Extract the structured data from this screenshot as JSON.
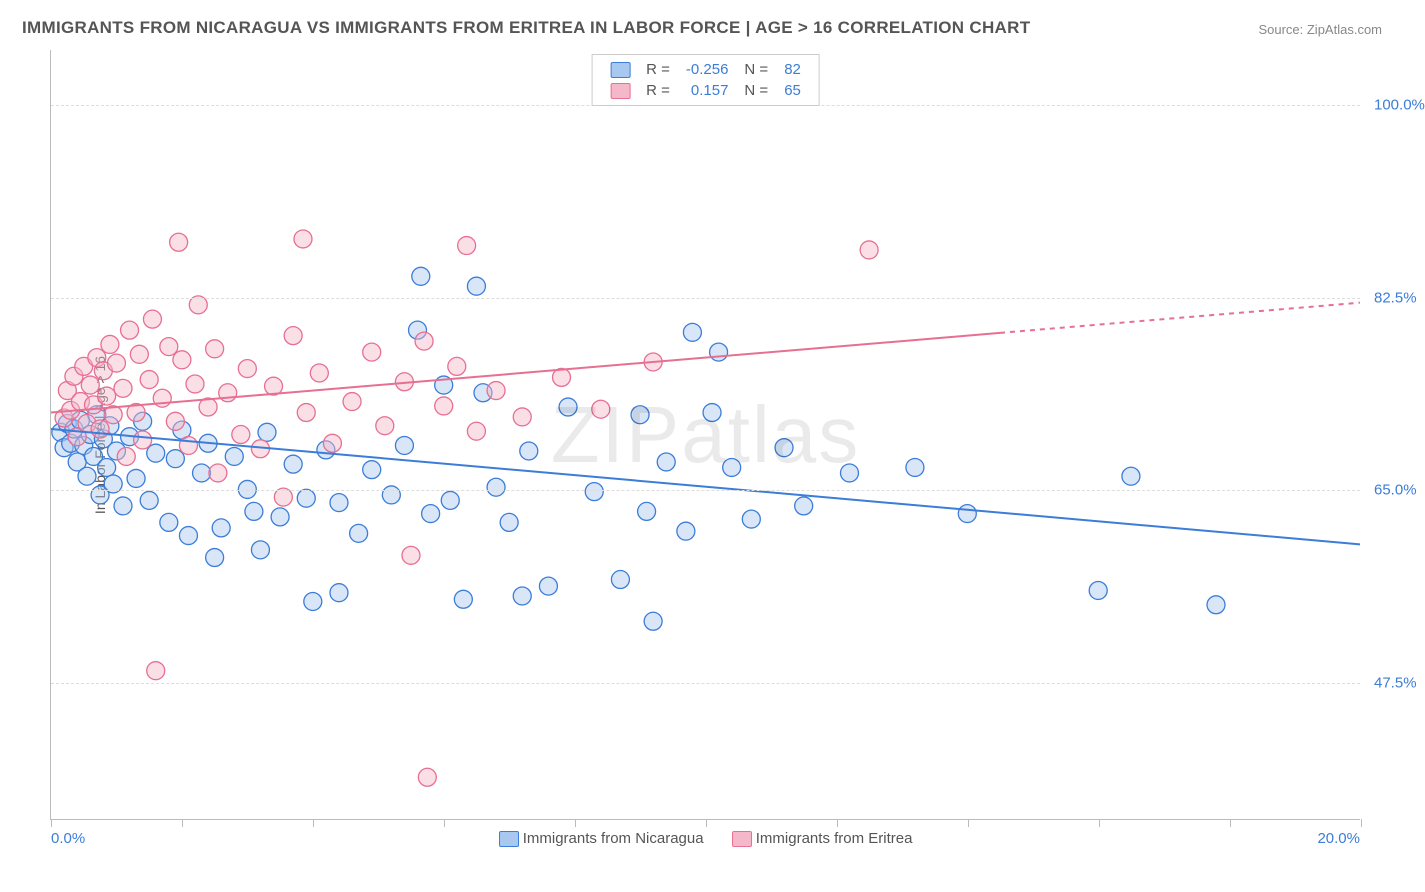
{
  "title": "IMMIGRANTS FROM NICARAGUA VS IMMIGRANTS FROM ERITREA IN LABOR FORCE | AGE > 16 CORRELATION CHART",
  "source": "Source: ZipAtlas.com",
  "watermark": "ZIPatlas",
  "yaxis_title": "In Labor Force | Age > 16",
  "chart": {
    "type": "scatter",
    "xlim": [
      0.0,
      20.0
    ],
    "ylim": [
      35.0,
      105.0
    ],
    "x_ticks": [
      0.0,
      2.0,
      4.0,
      6.0,
      8.0,
      10.0,
      12.0,
      14.0,
      16.0,
      18.0,
      20.0
    ],
    "y_gridlines": [
      47.5,
      65.0,
      82.5,
      100.0
    ],
    "y_tick_labels": [
      "47.5%",
      "65.0%",
      "82.5%",
      "100.0%"
    ],
    "x_min_label": "0.0%",
    "x_max_label": "20.0%",
    "grid_color": "#dddddd",
    "axis_color": "#bbbbbb",
    "background_color": "#ffffff",
    "marker_radius": 9,
    "marker_opacity": 0.45,
    "line_width": 2,
    "series": [
      {
        "name": "Immigrants from Nicaragua",
        "color_stroke": "#3b7dd8",
        "color_fill": "#a9c8ef",
        "R": "-0.256",
        "N": "82",
        "trend": {
          "x1": 0.0,
          "y1": 70.5,
          "x2": 20.0,
          "y2": 60.0,
          "dash_from_x": null
        },
        "points": [
          [
            0.15,
            70.2
          ],
          [
            0.2,
            68.8
          ],
          [
            0.25,
            71.0
          ],
          [
            0.3,
            69.2
          ],
          [
            0.35,
            70.5
          ],
          [
            0.4,
            67.5
          ],
          [
            0.45,
            71.3
          ],
          [
            0.5,
            69.0
          ],
          [
            0.55,
            66.2
          ],
          [
            0.6,
            70.0
          ],
          [
            0.65,
            68.0
          ],
          [
            0.7,
            71.8
          ],
          [
            0.75,
            64.5
          ],
          [
            0.8,
            69.6
          ],
          [
            0.85,
            67.0
          ],
          [
            0.9,
            70.8
          ],
          [
            0.95,
            65.5
          ],
          [
            1.0,
            68.5
          ],
          [
            1.1,
            63.5
          ],
          [
            1.2,
            69.8
          ],
          [
            1.3,
            66.0
          ],
          [
            1.4,
            71.2
          ],
          [
            1.5,
            64.0
          ],
          [
            1.6,
            68.3
          ],
          [
            1.8,
            62.0
          ],
          [
            1.9,
            67.8
          ],
          [
            2.0,
            70.4
          ],
          [
            2.1,
            60.8
          ],
          [
            2.3,
            66.5
          ],
          [
            2.4,
            69.2
          ],
          [
            2.6,
            61.5
          ],
          [
            2.8,
            68.0
          ],
          [
            3.0,
            65.0
          ],
          [
            3.1,
            63.0
          ],
          [
            3.3,
            70.2
          ],
          [
            3.5,
            62.5
          ],
          [
            3.7,
            67.3
          ],
          [
            3.9,
            64.2
          ],
          [
            4.0,
            54.8
          ],
          [
            4.2,
            68.6
          ],
          [
            4.4,
            63.8
          ],
          [
            4.7,
            61.0
          ],
          [
            4.9,
            66.8
          ],
          [
            5.2,
            64.5
          ],
          [
            5.4,
            69.0
          ],
          [
            5.6,
            79.5
          ],
          [
            5.8,
            62.8
          ],
          [
            5.65,
            84.4
          ],
          [
            6.0,
            74.5
          ],
          [
            6.1,
            64.0
          ],
          [
            6.3,
            55.0
          ],
          [
            6.5,
            83.5
          ],
          [
            6.6,
            73.8
          ],
          [
            6.8,
            65.2
          ],
          [
            7.0,
            62.0
          ],
          [
            7.3,
            68.5
          ],
          [
            7.6,
            56.2
          ],
          [
            7.9,
            72.5
          ],
          [
            8.3,
            64.8
          ],
          [
            8.7,
            56.8
          ],
          [
            9.0,
            71.8
          ],
          [
            9.1,
            63.0
          ],
          [
            9.2,
            53.0
          ],
          [
            9.4,
            67.5
          ],
          [
            9.7,
            61.2
          ],
          [
            9.8,
            79.3
          ],
          [
            10.1,
            72.0
          ],
          [
            10.2,
            77.5
          ],
          [
            10.4,
            67.0
          ],
          [
            10.7,
            62.3
          ],
          [
            11.2,
            68.8
          ],
          [
            11.5,
            63.5
          ],
          [
            12.2,
            66.5
          ],
          [
            13.2,
            67.0
          ],
          [
            14.0,
            62.8
          ],
          [
            16.0,
            55.8
          ],
          [
            16.5,
            66.2
          ],
          [
            17.8,
            54.5
          ],
          [
            4.4,
            55.6
          ],
          [
            3.2,
            59.5
          ],
          [
            2.5,
            58.8
          ],
          [
            7.2,
            55.3
          ]
        ]
      },
      {
        "name": "Immigrants from Eritrea",
        "color_stroke": "#e76f91",
        "color_fill": "#f5b8ca",
        "R": "0.157",
        "N": "65",
        "trend": {
          "x1": 0.0,
          "y1": 72.0,
          "x2": 20.0,
          "y2": 82.0,
          "dash_from_x": 14.5
        },
        "points": [
          [
            0.2,
            71.5
          ],
          [
            0.25,
            74.0
          ],
          [
            0.3,
            72.2
          ],
          [
            0.35,
            75.3
          ],
          [
            0.4,
            69.8
          ],
          [
            0.45,
            73.0
          ],
          [
            0.5,
            76.2
          ],
          [
            0.55,
            71.0
          ],
          [
            0.6,
            74.5
          ],
          [
            0.65,
            72.7
          ],
          [
            0.7,
            77.0
          ],
          [
            0.75,
            70.5
          ],
          [
            0.8,
            75.8
          ],
          [
            0.85,
            73.5
          ],
          [
            0.9,
            78.2
          ],
          [
            0.95,
            71.8
          ],
          [
            1.0,
            76.5
          ],
          [
            1.1,
            74.2
          ],
          [
            1.15,
            68.0
          ],
          [
            1.2,
            79.5
          ],
          [
            1.3,
            72.0
          ],
          [
            1.35,
            77.3
          ],
          [
            1.4,
            69.5
          ],
          [
            1.5,
            75.0
          ],
          [
            1.55,
            80.5
          ],
          [
            1.6,
            48.5
          ],
          [
            1.7,
            73.3
          ],
          [
            1.8,
            78.0
          ],
          [
            1.9,
            71.2
          ],
          [
            1.95,
            87.5
          ],
          [
            2.0,
            76.8
          ],
          [
            2.1,
            69.0
          ],
          [
            2.2,
            74.6
          ],
          [
            2.25,
            81.8
          ],
          [
            2.4,
            72.5
          ],
          [
            2.5,
            77.8
          ],
          [
            2.55,
            66.5
          ],
          [
            2.7,
            73.8
          ],
          [
            2.9,
            70.0
          ],
          [
            3.0,
            76.0
          ],
          [
            3.2,
            68.7
          ],
          [
            3.4,
            74.4
          ],
          [
            3.55,
            64.3
          ],
          [
            3.7,
            79.0
          ],
          [
            3.85,
            87.8
          ],
          [
            3.9,
            72.0
          ],
          [
            4.1,
            75.6
          ],
          [
            4.3,
            69.2
          ],
          [
            4.6,
            73.0
          ],
          [
            4.9,
            77.5
          ],
          [
            5.1,
            70.8
          ],
          [
            5.4,
            74.8
          ],
          [
            5.5,
            59.0
          ],
          [
            5.7,
            78.5
          ],
          [
            5.75,
            38.8
          ],
          [
            6.0,
            72.6
          ],
          [
            6.2,
            76.2
          ],
          [
            6.35,
            87.2
          ],
          [
            6.5,
            70.3
          ],
          [
            6.8,
            74.0
          ],
          [
            7.2,
            71.6
          ],
          [
            7.8,
            75.2
          ],
          [
            8.4,
            72.3
          ],
          [
            9.2,
            76.6
          ],
          [
            12.5,
            86.8
          ]
        ]
      }
    ]
  },
  "legend_top_labels": {
    "R": "R =",
    "N": "N ="
  },
  "legend_bottom": [
    {
      "label": "Immigrants from Nicaragua",
      "stroke": "#3b7dd8",
      "fill": "#a9c8ef"
    },
    {
      "label": "Immigrants from Eritrea",
      "stroke": "#e76f91",
      "fill": "#f5b8ca"
    }
  ]
}
